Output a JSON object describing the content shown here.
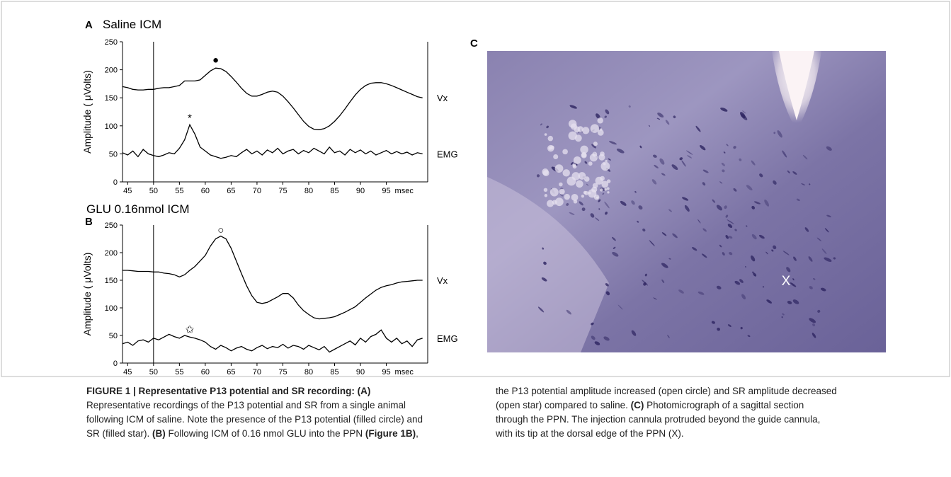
{
  "chart_data": [
    {
      "type": "line",
      "panel": "A",
      "title": "Saline ICM",
      "ylabel": "Amplitude ( μVolts)",
      "xlabel": "msec",
      "xlim": [
        44,
        103
      ],
      "ylim": [
        0,
        250
      ],
      "xticks": [
        45,
        50,
        55,
        60,
        65,
        70,
        75,
        80,
        85,
        90,
        95
      ],
      "yticks": [
        0,
        50,
        100,
        150,
        200,
        250
      ],
      "marker_x": 50,
      "x": [
        44,
        45,
        46,
        47,
        48,
        49,
        50,
        51,
        52,
        53,
        54,
        55,
        56,
        57,
        58,
        59,
        60,
        61,
        62,
        63,
        64,
        65,
        66,
        67,
        68,
        69,
        70,
        71,
        72,
        73,
        74,
        75,
        76,
        77,
        78,
        79,
        80,
        81,
        82,
        83,
        84,
        85,
        86,
        87,
        88,
        89,
        90,
        91,
        92,
        93,
        94,
        95,
        96,
        97,
        98,
        99,
        100,
        101,
        102
      ],
      "series": [
        {
          "name": "Vx",
          "color": "#000000",
          "values": [
            170,
            168,
            165,
            164,
            164,
            165,
            165,
            167,
            168,
            168,
            170,
            172,
            180,
            180,
            180,
            182,
            190,
            198,
            203,
            202,
            197,
            188,
            178,
            167,
            158,
            153,
            153,
            156,
            160,
            162,
            160,
            153,
            143,
            132,
            120,
            108,
            99,
            94,
            93,
            95,
            100,
            108,
            118,
            130,
            143,
            155,
            165,
            172,
            176,
            177,
            177,
            175,
            172,
            168,
            164,
            160,
            156,
            152,
            150
          ]
        },
        {
          "name": "EMG",
          "color": "#000000",
          "values": [
            52,
            48,
            55,
            45,
            58,
            50,
            47,
            45,
            48,
            52,
            50,
            60,
            75,
            102,
            85,
            62,
            55,
            48,
            45,
            42,
            44,
            47,
            45,
            52,
            58,
            50,
            55,
            48,
            57,
            52,
            60,
            50,
            55,
            58,
            50,
            56,
            52,
            60,
            55,
            50,
            62,
            52,
            55,
            48,
            58,
            52,
            57,
            50,
            55,
            48,
            52,
            56,
            50,
            54,
            50,
            53,
            48,
            52,
            50
          ]
        }
      ],
      "annotations": [
        {
          "text": "●",
          "x": 62,
          "y": 218
        },
        {
          "text": "*",
          "x": 57,
          "y": 114
        }
      ]
    },
    {
      "type": "line",
      "panel": "B",
      "title": "GLU 0.16nmol ICM",
      "ylabel": "Amplitude ( μVolts)",
      "xlabel": "msec",
      "xlim": [
        44,
        103
      ],
      "ylim": [
        0,
        250
      ],
      "xticks": [
        45,
        50,
        55,
        60,
        65,
        70,
        75,
        80,
        85,
        90,
        95
      ],
      "yticks": [
        0,
        50,
        100,
        150,
        200,
        250
      ],
      "marker_x": 50,
      "x": [
        44,
        45,
        46,
        47,
        48,
        49,
        50,
        51,
        52,
        53,
        54,
        55,
        56,
        57,
        58,
        59,
        60,
        61,
        62,
        63,
        64,
        65,
        66,
        67,
        68,
        69,
        70,
        71,
        72,
        73,
        74,
        75,
        76,
        77,
        78,
        79,
        80,
        81,
        82,
        83,
        84,
        85,
        86,
        87,
        88,
        89,
        90,
        91,
        92,
        93,
        94,
        95,
        96,
        97,
        98,
        99,
        100,
        101,
        102
      ],
      "series": [
        {
          "name": "Vx",
          "color": "#000000",
          "values": [
            168,
            168,
            167,
            166,
            166,
            166,
            165,
            165,
            163,
            162,
            160,
            156,
            160,
            168,
            175,
            185,
            195,
            212,
            225,
            230,
            225,
            208,
            185,
            162,
            140,
            122,
            110,
            108,
            110,
            115,
            120,
            126,
            126,
            118,
            105,
            95,
            88,
            82,
            80,
            81,
            82,
            84,
            88,
            92,
            97,
            102,
            110,
            118,
            125,
            132,
            137,
            140,
            142,
            145,
            147,
            148,
            149,
            150,
            150
          ]
        },
        {
          "name": "EMG",
          "color": "#000000",
          "values": [
            35,
            38,
            32,
            40,
            42,
            38,
            45,
            42,
            47,
            52,
            48,
            45,
            50,
            47,
            45,
            42,
            38,
            30,
            25,
            32,
            28,
            22,
            27,
            30,
            25,
            22,
            28,
            32,
            26,
            30,
            28,
            34,
            27,
            32,
            30,
            25,
            32,
            28,
            24,
            30,
            20,
            25,
            30,
            35,
            40,
            33,
            45,
            38,
            48,
            52,
            60,
            45,
            38,
            45,
            35,
            40,
            30,
            42,
            45
          ]
        }
      ],
      "annotations": [
        {
          "text": "○",
          "x": 63,
          "y": 241
        },
        {
          "text": "✩",
          "x": 57,
          "y": 61
        }
      ]
    }
  ],
  "panel_c": {
    "label": "C",
    "marker": "X"
  },
  "caption": {
    "left": [
      [
        {
          "bold": "FIGURE 1 | Representative P13 potential and SR recording: (A)"
        }
      ],
      [
        "Representative recordings of the P13 potential and SR from a single animal"
      ],
      [
        "following ICM of saline. Note the presence of the P13 potential (filled circle) and"
      ],
      [
        "SR (filled star). ",
        {
          "bold": "(B)"
        },
        " Following ICM of 0.16 nmol GLU into the PPN ",
        {
          "bold": "(Figure 1B)"
        },
        ","
      ]
    ],
    "right": [
      [
        "the P13 potential amplitude increased (open circle) and SR amplitude decreased"
      ],
      [
        "(open star) compared to saline. ",
        {
          "bold": "(C)"
        },
        " Photomicrograph of a sagittal section"
      ],
      [
        "through the PPN. The injection cannula protruded beyond the guide cannula,"
      ],
      [
        "with its tip at the dorsal edge of the PPN (X)."
      ]
    ]
  }
}
